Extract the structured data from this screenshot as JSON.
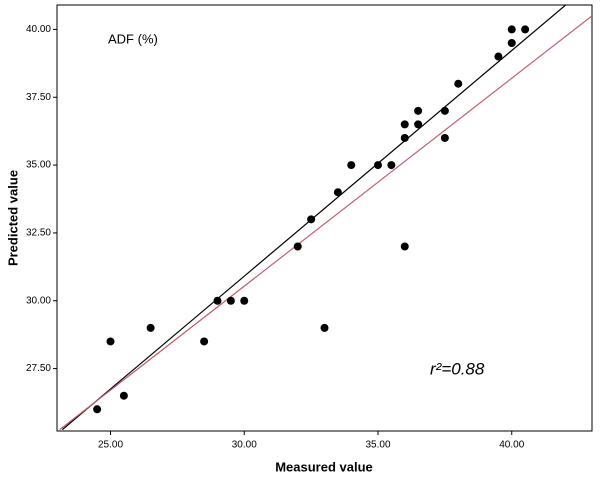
{
  "chart_data": {
    "type": "scatter",
    "annotations": [
      "ADF (%)",
      "r²=0.88"
    ],
    "x_label": "Measured value",
    "y_label": "Predicted value",
    "x": [
      24.5,
      25.0,
      25.5,
      26.5,
      28.5,
      29.0,
      29.5,
      30.0,
      32.0,
      32.5,
      33.0,
      33.5,
      34.0,
      35.0,
      35.5,
      36.0,
      36.0,
      36.0,
      36.5,
      36.5,
      37.5,
      37.5,
      38.0,
      39.5,
      40.0,
      40.0,
      40.5
    ],
    "values": [
      26.0,
      28.5,
      26.5,
      29.0,
      28.5,
      30.0,
      30.0,
      30.0,
      32.0,
      33.0,
      29.0,
      34.0,
      35.0,
      35.0,
      35.0,
      36.5,
      36.0,
      32.0,
      37.0,
      36.5,
      37.0,
      36.0,
      38.0,
      39.0,
      40.0,
      39.5,
      40.0
    ],
    "color": "#000000",
    "lines": [
      {
        "color": "#000000",
        "x": [
          23.2,
          42.04
        ],
        "y": [
          25.25,
          40.92
        ]
      },
      {
        "color": "#c0606c",
        "x": [
          23.1,
          43.0
        ],
        "y": [
          25.25,
          40.5
        ]
      }
    ],
    "xlim": [
      23,
      43
    ],
    "ylim": [
      25.2,
      40.9
    ],
    "xticks": [
      {
        "value": 25,
        "label": "25.00"
      },
      {
        "value": 30,
        "label": "30.00"
      },
      {
        "value": 35,
        "label": "35.00"
      },
      {
        "value": 40,
        "label": "40.00"
      }
    ],
    "yticks": [
      {
        "value": 27.5,
        "label": "27.50"
      },
      {
        "value": 30,
        "label": "30.00"
      },
      {
        "value": 32.5,
        "label": "32.50"
      },
      {
        "value": 35,
        "label": "35.00"
      },
      {
        "value": 37.5,
        "label": "37.50"
      },
      {
        "value": 40,
        "label": "40.00"
      }
    ]
  }
}
